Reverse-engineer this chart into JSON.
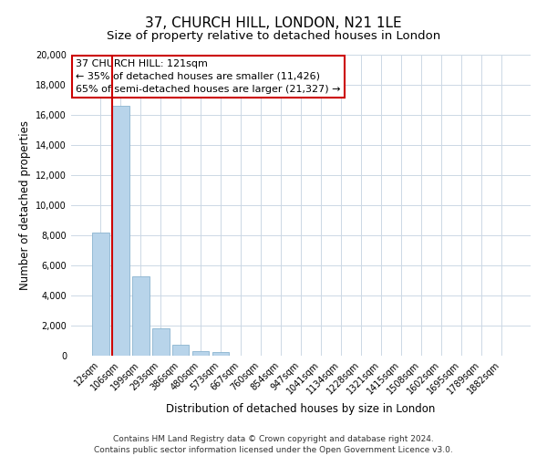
{
  "title": "37, CHURCH HILL, LONDON, N21 1LE",
  "subtitle": "Size of property relative to detached houses in London",
  "xlabel": "Distribution of detached houses by size in London",
  "ylabel": "Number of detached properties",
  "bar_labels": [
    "12sqm",
    "106sqm",
    "199sqm",
    "293sqm",
    "386sqm",
    "480sqm",
    "573sqm",
    "667sqm",
    "760sqm",
    "854sqm",
    "947sqm",
    "1041sqm",
    "1134sqm",
    "1228sqm",
    "1321sqm",
    "1415sqm",
    "1508sqm",
    "1602sqm",
    "1695sqm",
    "1789sqm",
    "1882sqm"
  ],
  "bar_values": [
    8200,
    16600,
    5300,
    1800,
    750,
    300,
    250,
    0,
    0,
    0,
    0,
    0,
    0,
    0,
    0,
    0,
    0,
    0,
    0,
    0,
    0
  ],
  "bar_color": "#b8d4ea",
  "bar_edge_color": "#8ab4d0",
  "property_line_color": "#cc0000",
  "ylim": [
    0,
    20000
  ],
  "yticks": [
    0,
    2000,
    4000,
    6000,
    8000,
    10000,
    12000,
    14000,
    16000,
    18000,
    20000
  ],
  "annotation_title": "37 CHURCH HILL: 121sqm",
  "annotation_line1": "← 35% of detached houses are smaller (11,426)",
  "annotation_line2": "65% of semi-detached houses are larger (21,327) →",
  "annotation_box_color": "#ffffff",
  "annotation_box_edge": "#cc0000",
  "footer_line1": "Contains HM Land Registry data © Crown copyright and database right 2024.",
  "footer_line2": "Contains public sector information licensed under the Open Government Licence v3.0.",
  "background_color": "#ffffff",
  "grid_color": "#ccd8e5",
  "title_fontsize": 11,
  "subtitle_fontsize": 9.5,
  "axis_label_fontsize": 8.5,
  "tick_fontsize": 7,
  "annotation_fontsize": 8,
  "footer_fontsize": 6.5
}
